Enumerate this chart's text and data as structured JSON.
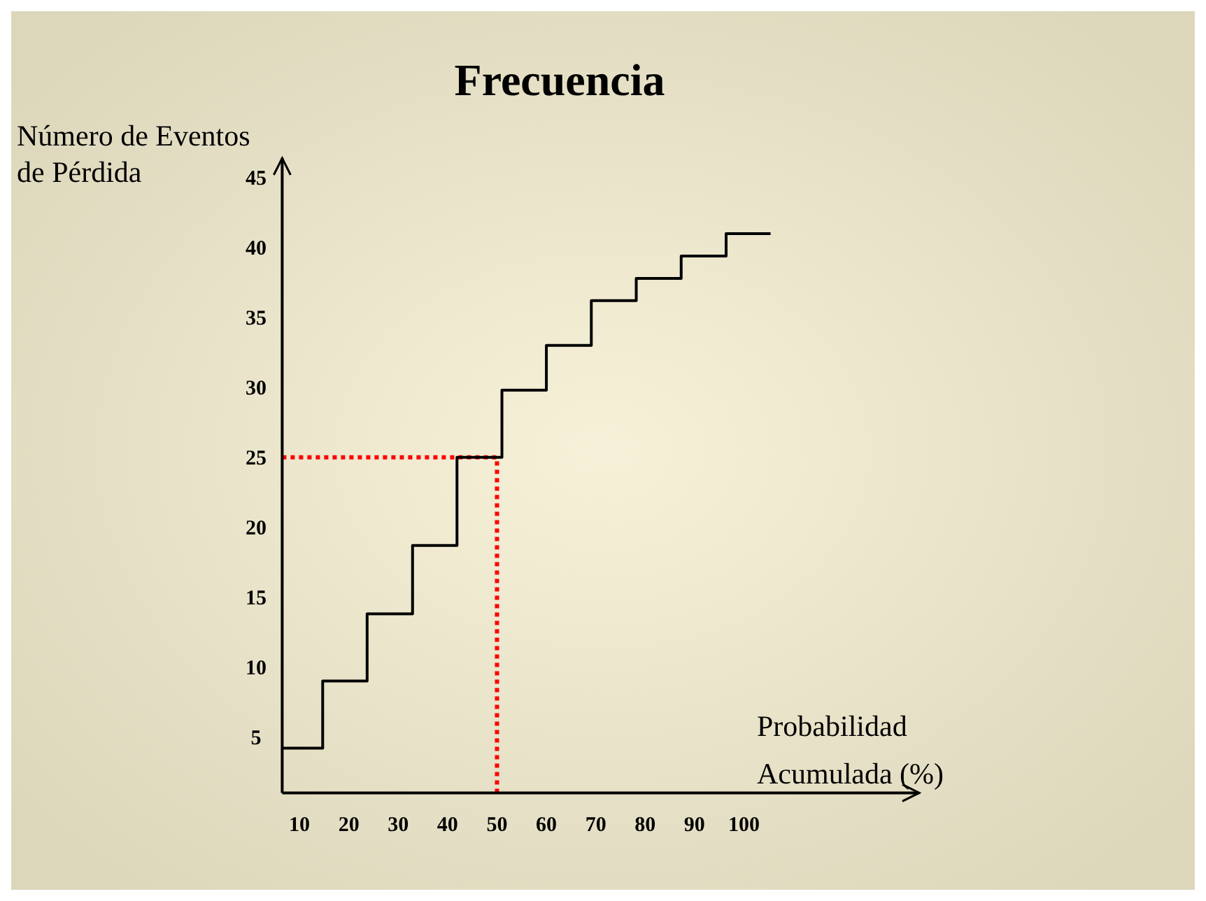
{
  "chart_data": {
    "type": "step",
    "title": "Frecuencia",
    "xlabel": "Probabilidad\nAcumulada (%)",
    "ylabel": "Número de Eventos\nde Pérdida",
    "x": [
      6.5,
      14.7,
      23.7,
      32.9,
      41.9,
      51,
      60,
      69.1,
      78.2,
      87.3,
      96.4,
      105.4
    ],
    "series": [
      {
        "color": "#000000",
        "values": [
          4.2,
          9,
          13.8,
          18.7,
          25,
          29.8,
          33,
          36.2,
          37.8,
          39.4,
          41,
          41
        ]
      }
    ],
    "xlim": [
      6.5,
      135.5
    ],
    "ylim": [
      1,
      46.4
    ],
    "xticks": [
      10,
      20,
      30,
      40,
      50,
      60,
      70,
      80,
      90,
      100
    ],
    "yticks": [
      5,
      10,
      15,
      20,
      25,
      30,
      35,
      40,
      45
    ],
    "ref_lines": [
      {
        "axis": "y",
        "value": 25,
        "color": "#ff0000",
        "line_style": "dotted"
      },
      {
        "axis": "x",
        "value": 50,
        "color": "#ff0000",
        "line_style": "dotted"
      }
    ],
    "marker": "none",
    "line_style": "solid"
  }
}
